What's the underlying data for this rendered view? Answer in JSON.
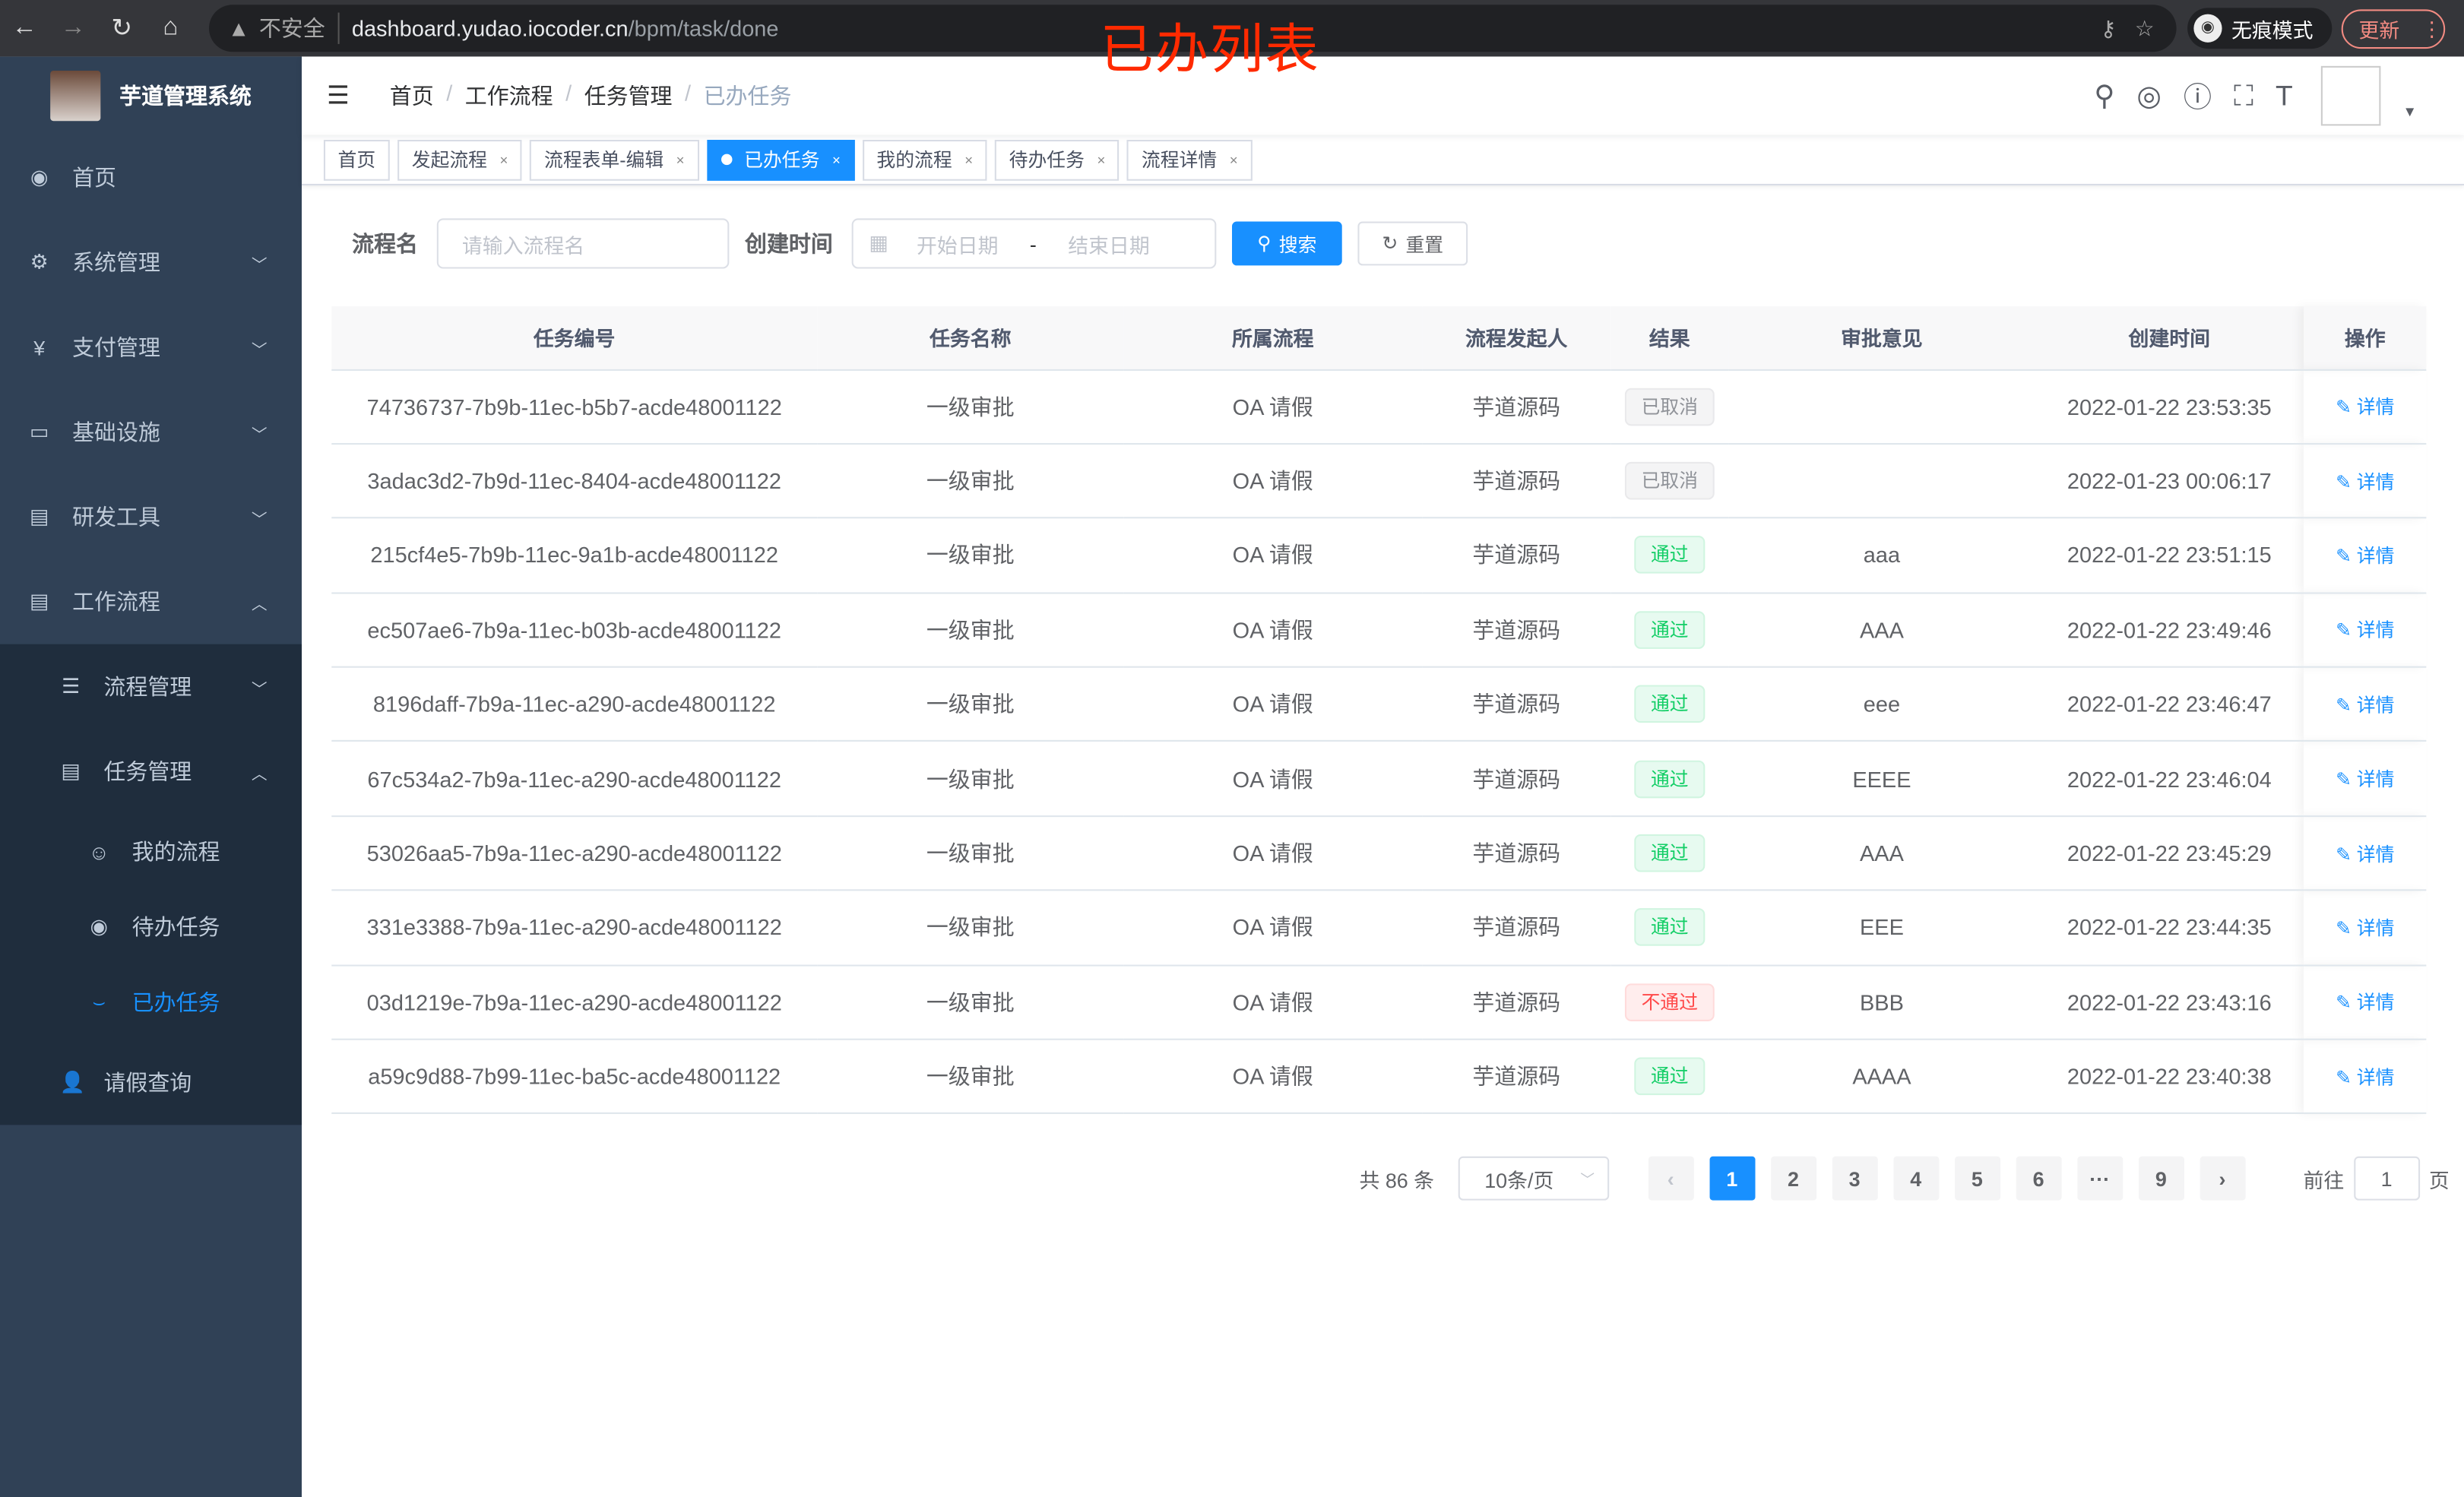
{
  "browser": {
    "insecure": "不安全",
    "url_host": "dashboard.yudao.iocoder.cn",
    "url_path": "/bpm/task/done",
    "incognito": "无痕模式",
    "update": "更新"
  },
  "overlay_title": "已办列表",
  "sidebar": {
    "title": "芋道管理系统",
    "items": [
      {
        "label": "首页",
        "icon": "dashboard-icon"
      },
      {
        "label": "系统管理",
        "icon": "gear-icon"
      },
      {
        "label": "支付管理",
        "icon": "yen-icon"
      },
      {
        "label": "基础设施",
        "icon": "monitor-icon"
      },
      {
        "label": "研发工具",
        "icon": "toolbox-icon"
      },
      {
        "label": "工作流程",
        "icon": "toolbox-icon"
      }
    ],
    "sub": {
      "process": "流程管理",
      "task": "任务管理",
      "task_items": [
        "我的流程",
        "待办任务",
        "已办任务"
      ],
      "leave": "请假查询"
    }
  },
  "breadcrumb": [
    "首页",
    "工作流程",
    "任务管理",
    "已办任务"
  ],
  "tags": [
    {
      "label": "首页",
      "close": false
    },
    {
      "label": "发起流程",
      "close": true
    },
    {
      "label": "流程表单-编辑",
      "close": true
    },
    {
      "label": "已办任务",
      "close": true,
      "active": true
    },
    {
      "label": "我的流程",
      "close": true
    },
    {
      "label": "待办任务",
      "close": true
    },
    {
      "label": "流程详情",
      "close": true
    }
  ],
  "search": {
    "name_label": "流程名",
    "name_placeholder": "请输入流程名",
    "time_label": "创建时间",
    "start_placeholder": "开始日期",
    "sep": "-",
    "end_placeholder": "结束日期",
    "search_btn": "搜索",
    "reset_btn": "重置"
  },
  "table": {
    "columns": [
      "任务编号",
      "任务名称",
      "所属流程",
      "流程发起人",
      "结果",
      "审批意见",
      "创建时间",
      "操作"
    ],
    "action": "详情",
    "rows": [
      [
        "74736737-7b9b-11ec-b5b7-acde48001122",
        "一级审批",
        "OA 请假",
        "芋道源码",
        {
          "t": "已取消",
          "s": "info"
        },
        "",
        "2022-01-22 23:53:35"
      ],
      [
        "3adac3d2-7b9d-11ec-8404-acde48001122",
        "一级审批",
        "OA 请假",
        "芋道源码",
        {
          "t": "已取消",
          "s": "info"
        },
        "",
        "2022-01-23 00:06:17"
      ],
      [
        "215cf4e5-7b9b-11ec-9a1b-acde48001122",
        "一级审批",
        "OA 请假",
        "芋道源码",
        {
          "t": "通过",
          "s": "success"
        },
        "aaa",
        "2022-01-22 23:51:15"
      ],
      [
        "ec507ae6-7b9a-11ec-b03b-acde48001122",
        "一级审批",
        "OA 请假",
        "芋道源码",
        {
          "t": "通过",
          "s": "success"
        },
        "AAA",
        "2022-01-22 23:49:46"
      ],
      [
        "8196daff-7b9a-11ec-a290-acde48001122",
        "一级审批",
        "OA 请假",
        "芋道源码",
        {
          "t": "通过",
          "s": "success"
        },
        "eee",
        "2022-01-22 23:46:47"
      ],
      [
        "67c534a2-7b9a-11ec-a290-acde48001122",
        "一级审批",
        "OA 请假",
        "芋道源码",
        {
          "t": "通过",
          "s": "success"
        },
        "EEEE",
        "2022-01-22 23:46:04"
      ],
      [
        "53026aa5-7b9a-11ec-a290-acde48001122",
        "一级审批",
        "OA 请假",
        "芋道源码",
        {
          "t": "通过",
          "s": "success"
        },
        "AAA",
        "2022-01-22 23:45:29"
      ],
      [
        "331e3388-7b9a-11ec-a290-acde48001122",
        "一级审批",
        "OA 请假",
        "芋道源码",
        {
          "t": "通过",
          "s": "success"
        },
        "EEE",
        "2022-01-22 23:44:35"
      ],
      [
        "03d1219e-7b9a-11ec-a290-acde48001122",
        "一级审批",
        "OA 请假",
        "芋道源码",
        {
          "t": "不通过",
          "s": "danger"
        },
        "BBB",
        "2022-01-22 23:43:16"
      ],
      [
        "a59c9d88-7b99-11ec-ba5c-acde48001122",
        "一级审批",
        "OA 请假",
        "芋道源码",
        {
          "t": "通过",
          "s": "success"
        },
        "AAAA",
        "2022-01-22 23:40:38"
      ]
    ]
  },
  "pagination": {
    "total": "共 86 条",
    "page_size": "10条/页",
    "pages": [
      "1",
      "2",
      "3",
      "4",
      "5",
      "6",
      "···",
      "9"
    ],
    "current": "1",
    "goto": "前往",
    "goto_value": "1",
    "page_unit": "页"
  },
  "colors": {
    "sidebar": "#304156",
    "accent": "#1890ff",
    "overlay": "#ff2a00"
  }
}
